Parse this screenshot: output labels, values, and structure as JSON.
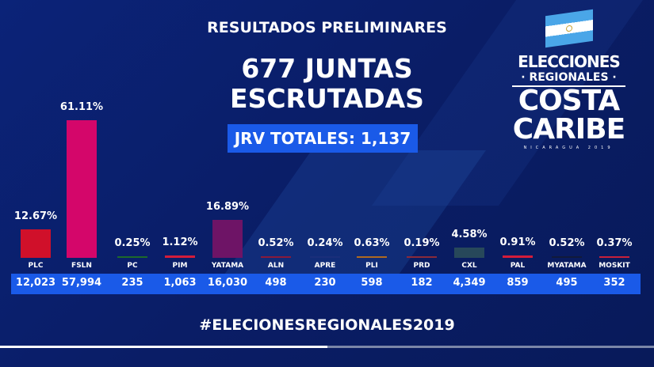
{
  "header": {
    "title": "RESULTADOS PRELIMINARES",
    "juntas": "677 JUNTAS",
    "escrutadas": "ESCRUTADAS",
    "jrv_totales": "JRV  TOTALES: 1,137"
  },
  "logo": {
    "line1": "ELECCIONES",
    "line2": "· REGIONALES ·",
    "line3": "COSTA",
    "line4": "CARIBE",
    "line5": "NICARAGUA 2019"
  },
  "hashtag": "#ELECIONESREGIONALES2019",
  "progress": 0.5,
  "chart_data": {
    "type": "bar",
    "categories": [
      "PLC",
      "FSLN",
      "PC",
      "PIM",
      "YATAMA",
      "ALN",
      "APRE",
      "PLI",
      "PRD",
      "CXL",
      "PAL",
      "MYATAMA",
      "MOSKIT"
    ],
    "values": [
      12.67,
      61.11,
      0.25,
      1.12,
      16.89,
      0.52,
      0.24,
      0.63,
      0.19,
      4.58,
      0.91,
      0.52,
      0.37
    ],
    "value_labels": [
      "12.67%",
      "61.11%",
      "0.25%",
      "1.12%",
      "16.89%",
      "0.52%",
      "0.24%",
      "0.63%",
      "0.19%",
      "4.58%",
      "0.91%",
      "0.52%",
      "0.37%"
    ],
    "votes": [
      "12,023",
      "57,994",
      "235",
      "1,063",
      "16,030",
      "498",
      "230",
      "598",
      "182",
      "4,349",
      "859",
      "495",
      "352"
    ],
    "colors": [
      "#d0102a",
      "#d4066a",
      "#1d6a2a",
      "#d41c3a",
      "#6e1466",
      "#8a1a3a",
      "#1a2e7a",
      "#b06a20",
      "#8a2a3a",
      "#27485a",
      "#d41c3a",
      "#111a3a",
      "#c8203a"
    ],
    "ylim": [
      0,
      65
    ]
  }
}
